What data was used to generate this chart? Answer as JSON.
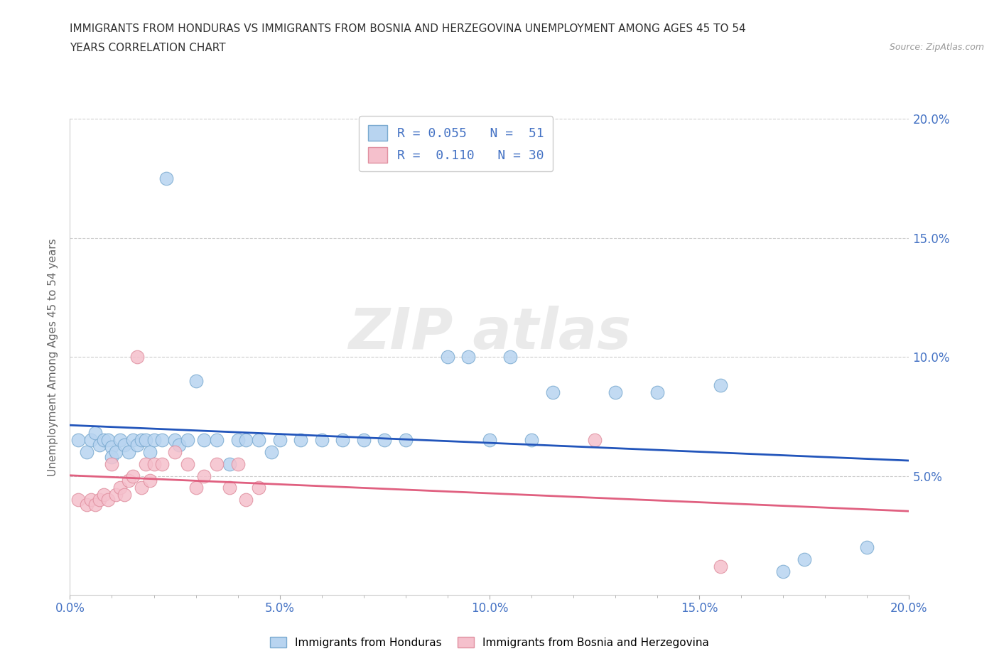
{
  "title_line1": "IMMIGRANTS FROM HONDURAS VS IMMIGRANTS FROM BOSNIA AND HERZEGOVINA UNEMPLOYMENT AMONG AGES 45 TO 54",
  "title_line2": "YEARS CORRELATION CHART",
  "source": "Source: ZipAtlas.com",
  "ylabel": "Unemployment Among Ages 45 to 54 years",
  "xlim": [
    0.0,
    0.2
  ],
  "ylim": [
    0.0,
    0.2
  ],
  "xtick_labels": [
    "0.0%",
    "",
    "",
    "",
    "",
    "5.0%",
    "",
    "",
    "",
    "",
    "10.0%",
    "",
    "",
    "",
    "",
    "15.0%",
    "",
    "",
    "",
    "",
    "20.0%"
  ],
  "xtick_vals": [
    0.0,
    0.01,
    0.02,
    0.03,
    0.04,
    0.05,
    0.06,
    0.07,
    0.08,
    0.09,
    0.1,
    0.11,
    0.12,
    0.13,
    0.14,
    0.15,
    0.16,
    0.17,
    0.18,
    0.19,
    0.2
  ],
  "ytick_labels": [
    "5.0%",
    "10.0%",
    "15.0%",
    "20.0%"
  ],
  "ytick_vals": [
    0.05,
    0.1,
    0.15,
    0.2
  ],
  "honduras_color": "#b8d4f0",
  "honduras_edge": "#7aaad0",
  "bosnia_color": "#f5c0cc",
  "bosnia_edge": "#e090a0",
  "line_honduras_color": "#2255bb",
  "line_bosnia_color": "#e06080",
  "honduras_x": [
    0.002,
    0.004,
    0.005,
    0.006,
    0.007,
    0.008,
    0.009,
    0.01,
    0.01,
    0.011,
    0.012,
    0.013,
    0.014,
    0.015,
    0.016,
    0.017,
    0.018,
    0.019,
    0.02,
    0.022,
    0.023,
    0.025,
    0.026,
    0.028,
    0.03,
    0.032,
    0.035,
    0.038,
    0.04,
    0.042,
    0.045,
    0.048,
    0.05,
    0.055,
    0.06,
    0.065,
    0.07,
    0.075,
    0.08,
    0.09,
    0.095,
    0.1,
    0.105,
    0.11,
    0.115,
    0.13,
    0.14,
    0.155,
    0.17,
    0.175,
    0.19
  ],
  "honduras_y": [
    0.065,
    0.06,
    0.065,
    0.068,
    0.063,
    0.065,
    0.065,
    0.062,
    0.058,
    0.06,
    0.065,
    0.063,
    0.06,
    0.065,
    0.063,
    0.065,
    0.065,
    0.06,
    0.065,
    0.065,
    0.175,
    0.065,
    0.063,
    0.065,
    0.09,
    0.065,
    0.065,
    0.055,
    0.065,
    0.065,
    0.065,
    0.06,
    0.065,
    0.065,
    0.065,
    0.065,
    0.065,
    0.065,
    0.065,
    0.1,
    0.1,
    0.065,
    0.1,
    0.065,
    0.085,
    0.085,
    0.085,
    0.088,
    0.01,
    0.015,
    0.02
  ],
  "bosnia_x": [
    0.002,
    0.004,
    0.005,
    0.006,
    0.007,
    0.008,
    0.009,
    0.01,
    0.011,
    0.012,
    0.013,
    0.014,
    0.015,
    0.016,
    0.017,
    0.018,
    0.019,
    0.02,
    0.022,
    0.025,
    0.028,
    0.03,
    0.032,
    0.035,
    0.038,
    0.04,
    0.042,
    0.045,
    0.125,
    0.155
  ],
  "bosnia_y": [
    0.04,
    0.038,
    0.04,
    0.038,
    0.04,
    0.042,
    0.04,
    0.055,
    0.042,
    0.045,
    0.042,
    0.048,
    0.05,
    0.1,
    0.045,
    0.055,
    0.048,
    0.055,
    0.055,
    0.06,
    0.055,
    0.045,
    0.05,
    0.055,
    0.045,
    0.055,
    0.04,
    0.045,
    0.065,
    0.012
  ]
}
